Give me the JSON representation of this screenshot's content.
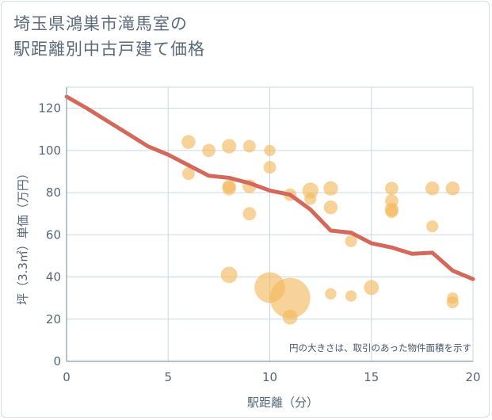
{
  "title_line1": "埼玉県鴻巣市滝馬室の",
  "title_line2": "駅距離別中古戸建て価格",
  "note": "円の大きさは、取引のあった物件面積を示す",
  "colors": {
    "bubble": "#f3b85a",
    "line": "#d4685a",
    "grid": "#c9d7e3",
    "axis": "#8a9aab"
  },
  "chart_data": {
    "type": "scatter",
    "title": "埼玉県鴻巣市滝馬室の駅距離別中古戸建て価格",
    "xlabel": "駅距離（分）",
    "ylabel": "坪（3.3㎡）単価（万円）",
    "xlim": [
      0,
      20
    ],
    "ylim": [
      0,
      130
    ],
    "xticks": [
      0,
      5,
      10,
      15,
      20
    ],
    "yticks": [
      0,
      20,
      40,
      60,
      80,
      100,
      120
    ],
    "grid": true,
    "bubbles": [
      {
        "x": 6,
        "y": 104,
        "size": 1.2
      },
      {
        "x": 6,
        "y": 89,
        "size": 1.0
      },
      {
        "x": 7,
        "y": 100,
        "size": 1.1
      },
      {
        "x": 8,
        "y": 102,
        "size": 1.3
      },
      {
        "x": 8,
        "y": 83,
        "size": 1.1
      },
      {
        "x": 8,
        "y": 82,
        "size": 1.2
      },
      {
        "x": 8,
        "y": 41,
        "size": 1.7
      },
      {
        "x": 9,
        "y": 102,
        "size": 1.0
      },
      {
        "x": 9,
        "y": 83,
        "size": 1.2
      },
      {
        "x": 9,
        "y": 70,
        "size": 1.1
      },
      {
        "x": 10,
        "y": 100,
        "size": 0.8
      },
      {
        "x": 10,
        "y": 92,
        "size": 1.0
      },
      {
        "x": 10,
        "y": 35,
        "size": 3.2
      },
      {
        "x": 11,
        "y": 79,
        "size": 1.0
      },
      {
        "x": 11,
        "y": 30,
        "size": 5.6
      },
      {
        "x": 11,
        "y": 21,
        "size": 1.4
      },
      {
        "x": 12,
        "y": 81,
        "size": 1.6
      },
      {
        "x": 12,
        "y": 77,
        "size": 0.9
      },
      {
        "x": 13,
        "y": 82,
        "size": 1.3
      },
      {
        "x": 13,
        "y": 73,
        "size": 1.2
      },
      {
        "x": 13,
        "y": 32,
        "size": 0.8
      },
      {
        "x": 14,
        "y": 57,
        "size": 0.9
      },
      {
        "x": 14,
        "y": 31,
        "size": 0.8
      },
      {
        "x": 15,
        "y": 35,
        "size": 1.4
      },
      {
        "x": 16,
        "y": 82,
        "size": 1.1
      },
      {
        "x": 16,
        "y": 76,
        "size": 1.1
      },
      {
        "x": 16,
        "y": 72,
        "size": 1.2
      },
      {
        "x": 16,
        "y": 71,
        "size": 1.0
      },
      {
        "x": 18,
        "y": 82,
        "size": 1.2
      },
      {
        "x": 18,
        "y": 64,
        "size": 0.9
      },
      {
        "x": 19,
        "y": 82,
        "size": 1.2
      },
      {
        "x": 19,
        "y": 30,
        "size": 0.8
      },
      {
        "x": 19,
        "y": 28,
        "size": 0.9
      }
    ],
    "trend_line": {
      "x": [
        0,
        1,
        2,
        3,
        4,
        5,
        6,
        7,
        8,
        9,
        10,
        11,
        12,
        13,
        14,
        15,
        16,
        17,
        18,
        19,
        20
      ],
      "y": [
        125.5,
        120,
        114,
        108,
        102,
        98,
        93,
        88,
        87,
        84.5,
        81,
        79,
        72,
        62,
        61,
        56,
        54,
        51,
        51.5,
        43,
        39
      ]
    }
  }
}
